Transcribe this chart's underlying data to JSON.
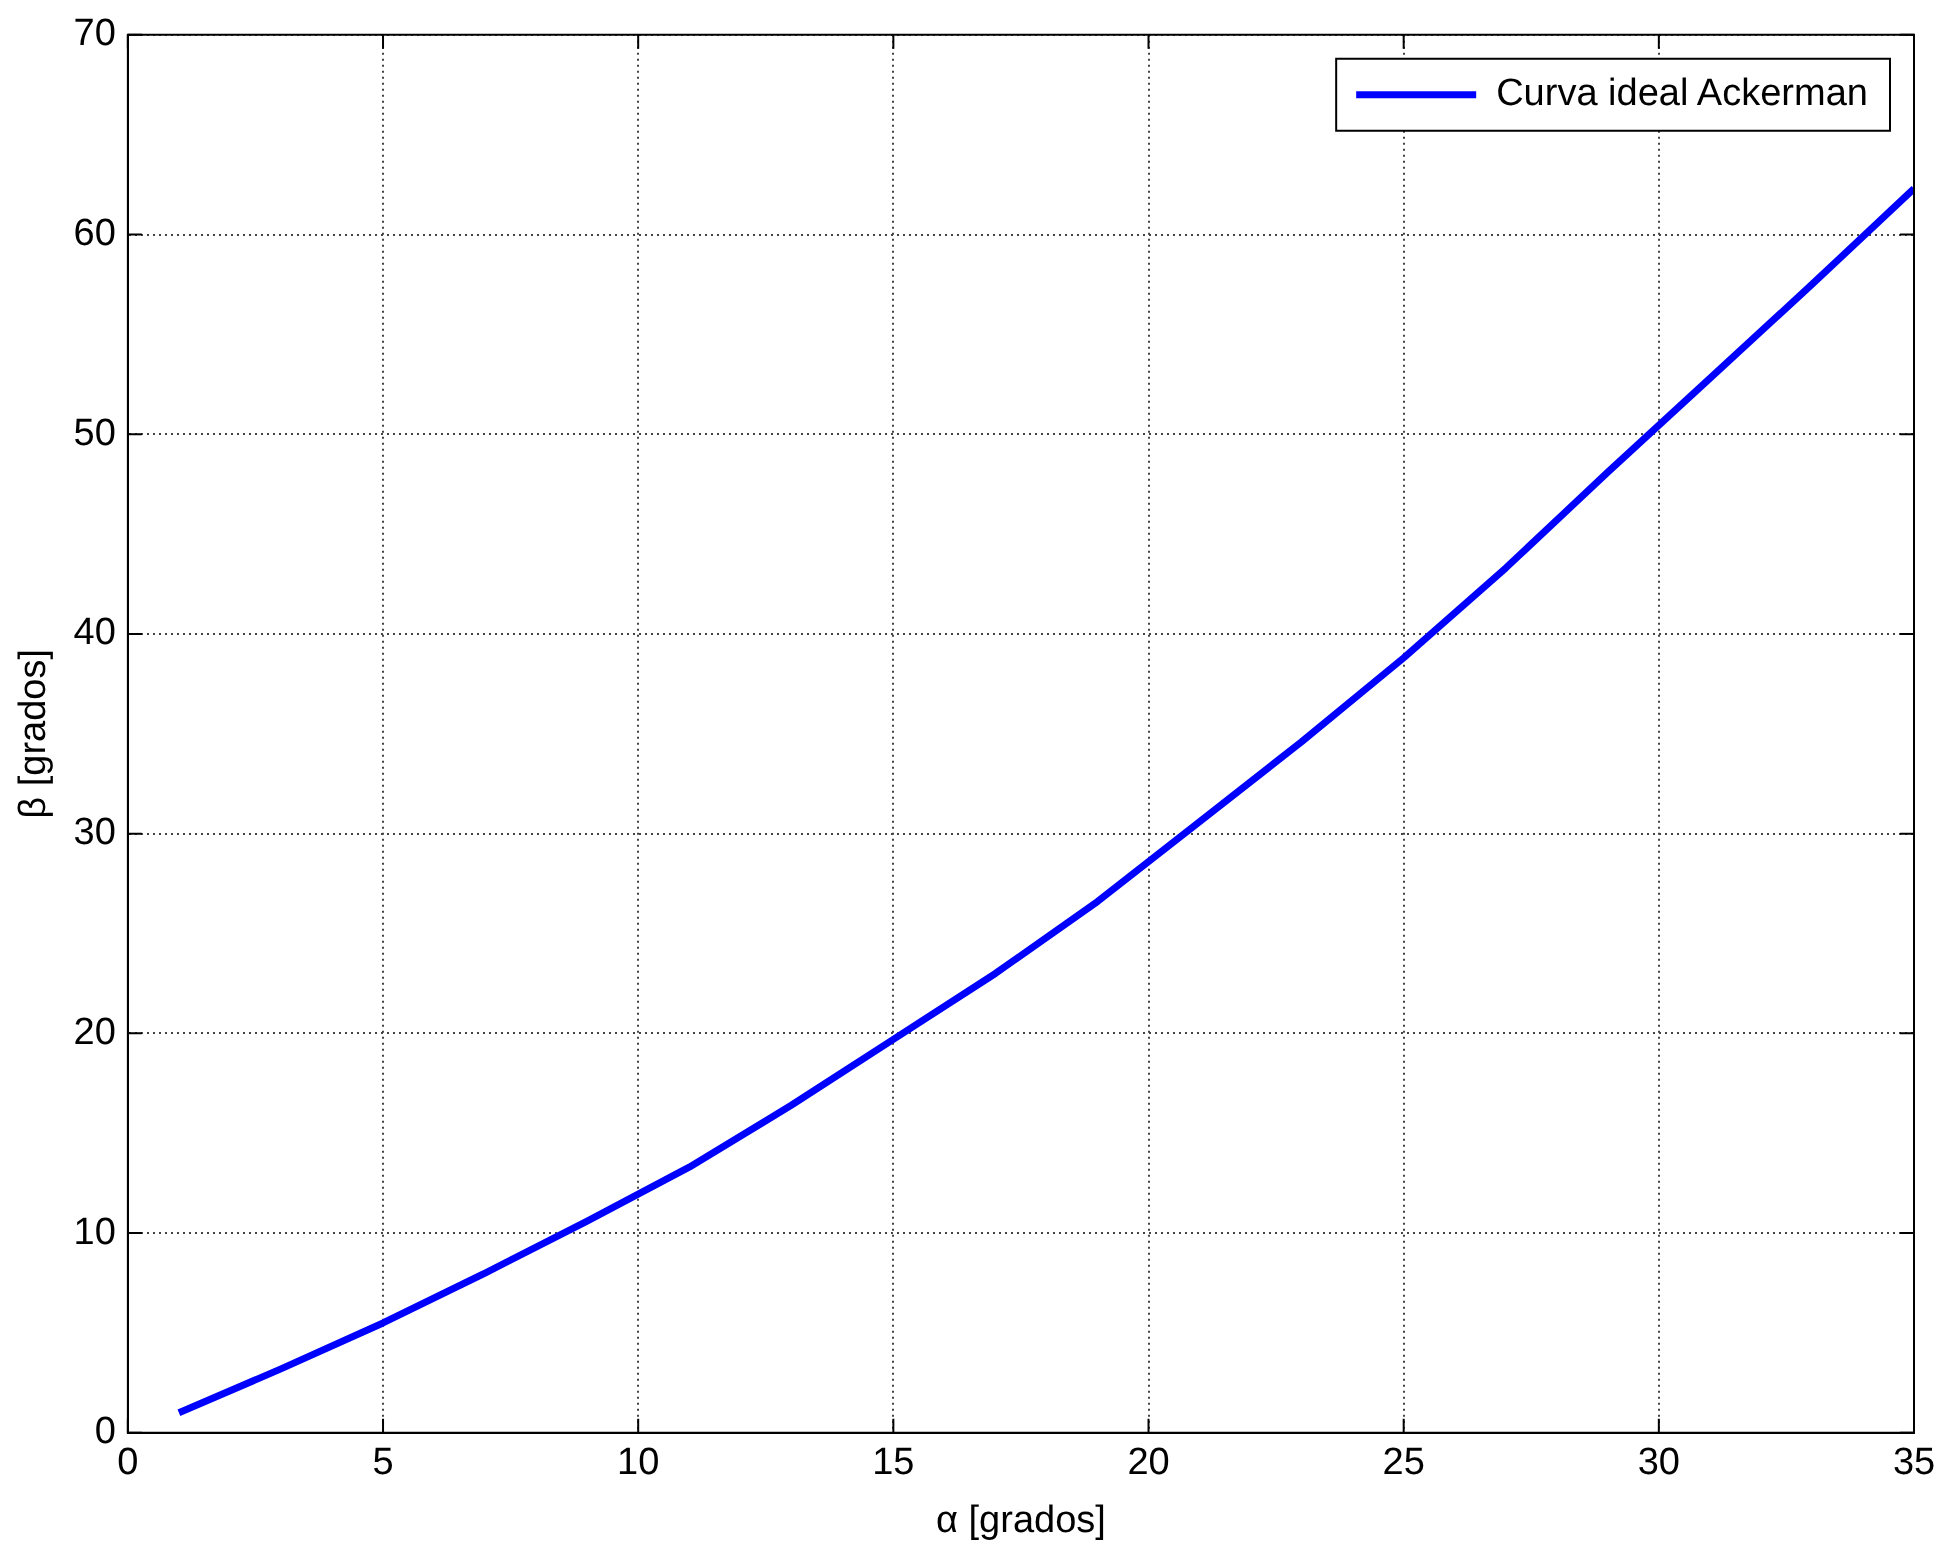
{
  "chart_data": {
    "type": "line",
    "xlabel": "α [grados]",
    "ylabel": "β [grados]",
    "x": [
      1,
      3,
      5,
      7,
      9,
      11,
      13,
      15,
      17,
      19,
      21,
      23,
      25,
      27,
      29,
      31,
      33,
      35
    ],
    "series": [
      {
        "name": "Curva ideal Ackerman",
        "color": "#0000ff",
        "values": [
          1.0,
          3.2,
          5.5,
          8.0,
          10.6,
          13.3,
          16.4,
          19.7,
          23.0,
          26.6,
          30.6,
          34.6,
          38.8,
          43.3,
          48.1,
          52.8,
          57.5,
          62.3
        ]
      }
    ],
    "xlim": [
      0,
      35
    ],
    "xticks": [
      0,
      5,
      10,
      15,
      20,
      25,
      30,
      35
    ],
    "ylim": [
      0,
      70
    ],
    "yticks": [
      0,
      10,
      20,
      30,
      40,
      50,
      60,
      70
    ],
    "grid": true,
    "legend": "top right",
    "marker": "none",
    "line_style": "solid"
  }
}
